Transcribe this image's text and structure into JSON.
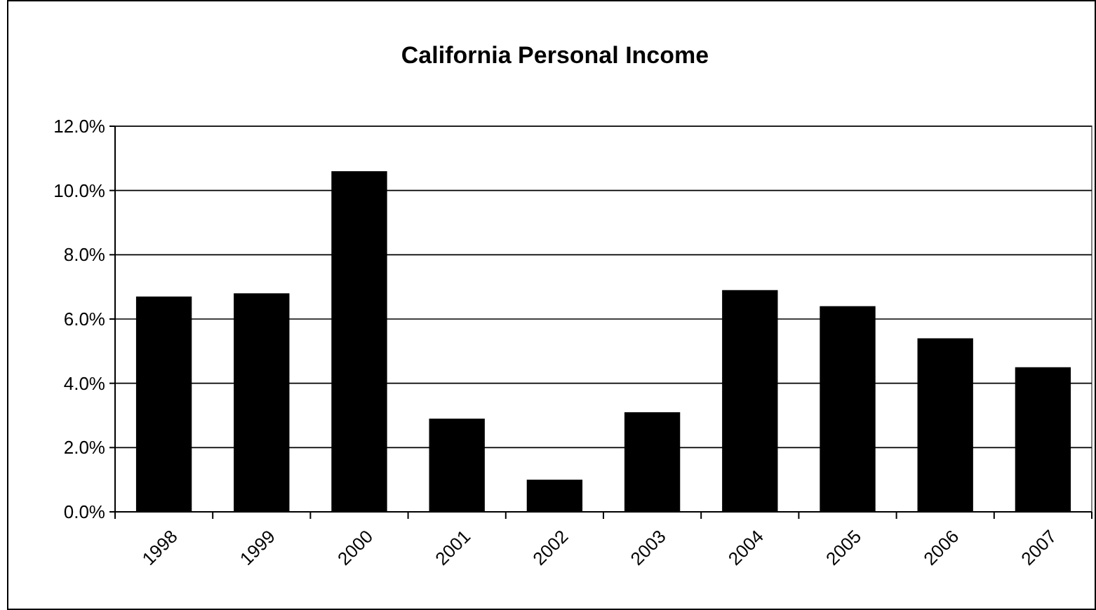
{
  "chart_data": {
    "type": "bar",
    "title": "California Personal Income",
    "categories": [
      "1998",
      "1999",
      "2000",
      "2001",
      "2002",
      "2003",
      "2004",
      "2005",
      "2006",
      "2007"
    ],
    "values": [
      6.7,
      6.8,
      10.6,
      2.9,
      1.0,
      3.1,
      6.9,
      6.4,
      5.4,
      4.5
    ],
    "color": "#000000",
    "ylim": [
      0,
      12
    ],
    "yticks": [
      {
        "value": 0,
        "label": "0.0%"
      },
      {
        "value": 2,
        "label": "2.0%"
      },
      {
        "value": 4,
        "label": "4.0%"
      },
      {
        "value": 6,
        "label": "6.0%"
      },
      {
        "value": 8,
        "label": "8.0%"
      },
      {
        "value": 10,
        "label": "10.0%"
      },
      {
        "value": 12,
        "label": "12.0%"
      }
    ],
    "grid": "y"
  }
}
